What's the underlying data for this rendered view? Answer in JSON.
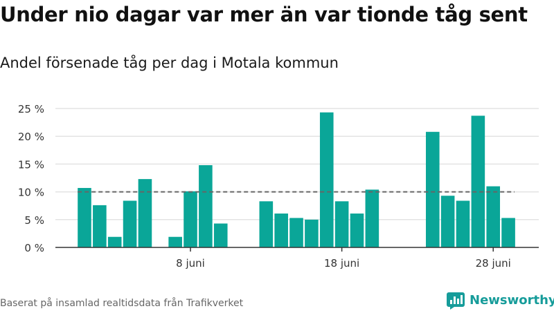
{
  "header": {
    "title": "Under nio dagar var mer än var tionde tåg sent",
    "subtitle": "Andel försenade tåg per dag i Motala kommun"
  },
  "footer": {
    "source": "Baserat på insamlad realtidsdata från Trafikverket",
    "brand": "Newsworthy"
  },
  "colors": {
    "bar": "#0aa698",
    "grid": "#e3e3e3",
    "reference_line": "#666666",
    "brand": "#169c9a"
  },
  "chart_data": {
    "type": "bar",
    "x": [
      1,
      2,
      3,
      4,
      5,
      6,
      7,
      8,
      9,
      10,
      11,
      12,
      13,
      14,
      15,
      16,
      17,
      18,
      19,
      20,
      21,
      22,
      23,
      24,
      25,
      26,
      27,
      28,
      29,
      30
    ],
    "values": [
      10.7,
      7.6,
      1.9,
      8.4,
      12.3,
      null,
      1.9,
      10.1,
      14.8,
      4.3,
      null,
      null,
      8.3,
      6.1,
      5.3,
      5.0,
      24.3,
      8.3,
      6.1,
      10.4,
      null,
      null,
      null,
      20.8,
      9.3,
      8.4,
      23.7,
      11.0,
      5.3,
      null
    ],
    "xticks": [
      {
        "x": 8,
        "label": "8 juni"
      },
      {
        "x": 18,
        "label": "18 juni"
      },
      {
        "x": 28,
        "label": "28 juni"
      }
    ],
    "yticks": [
      {
        "value": 0,
        "label": "0 %"
      },
      {
        "value": 5,
        "label": "5 %"
      },
      {
        "value": 10,
        "label": "10 %"
      },
      {
        "value": 15,
        "label": "15 %"
      },
      {
        "value": 20,
        "label": "20 %"
      },
      {
        "value": 25,
        "label": "25 %"
      }
    ],
    "ylim": [
      0,
      25
    ],
    "reference_line": 10,
    "grid": true
  }
}
